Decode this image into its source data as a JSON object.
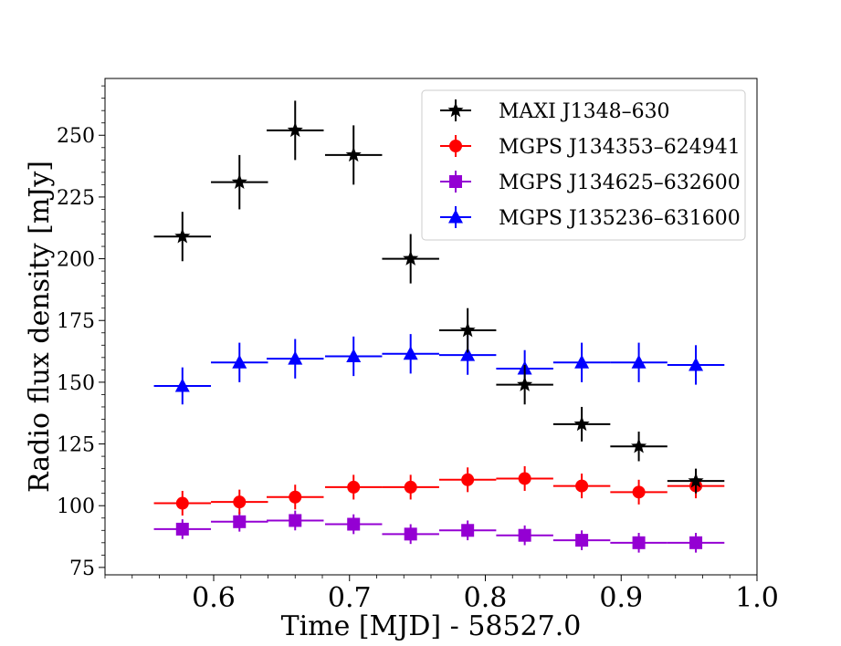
{
  "chart_data": {
    "type": "scatter",
    "title": "",
    "xlabel": "Time [MJD] - 58527.0",
    "ylabel": "Radio flux density [mJy]",
    "xlim": [
      0.52,
      1.0
    ],
    "ylim": [
      72,
      273
    ],
    "xticks": [
      0.6,
      0.7,
      0.8,
      0.9,
      1.0
    ],
    "xtick_labels": [
      "0.6",
      "0.7",
      "0.8",
      "0.9",
      "1.0"
    ],
    "yticks": [
      75,
      100,
      125,
      150,
      175,
      200,
      225,
      250
    ],
    "ytick_labels": [
      "75",
      "100",
      "125",
      "150",
      "175",
      "200",
      "225",
      "250"
    ],
    "legend_position": "top-right",
    "x": [
      0.577,
      0.619,
      0.66,
      0.703,
      0.745,
      0.787,
      0.829,
      0.871,
      0.913,
      0.955
    ],
    "x_err": 0.021,
    "series": [
      {
        "name": "MAXI J1348–630",
        "color": "#000000",
        "marker": "star",
        "values": [
          209,
          231,
          252,
          242,
          200,
          171,
          149,
          133,
          124,
          110
        ],
        "y_err": [
          10,
          11,
          12,
          12,
          10,
          9,
          8,
          7,
          6,
          5
        ]
      },
      {
        "name": "MGPS J134353–624941",
        "color": "#ff0000",
        "marker": "circle",
        "values": [
          101,
          101.5,
          103.5,
          107.5,
          107.5,
          110.5,
          111,
          108,
          105.5,
          108
        ],
        "y_err": [
          5,
          5,
          5,
          5,
          5,
          5,
          5,
          5,
          5,
          5
        ]
      },
      {
        "name": "MGPS J134625–632600",
        "color": "#9400d3",
        "marker": "square",
        "values": [
          90.5,
          93.5,
          94,
          92.5,
          88.5,
          90,
          88,
          86,
          85,
          85
        ],
        "y_err": [
          4,
          4,
          4,
          4,
          4,
          4,
          4,
          4,
          4,
          4
        ]
      },
      {
        "name": "MGPS J135236–631600",
        "color": "#0000ff",
        "marker": "triangle",
        "values": [
          148.5,
          158,
          159.5,
          160.5,
          161.5,
          161,
          155.5,
          158,
          158,
          157
        ],
        "y_err": [
          7.5,
          8,
          8,
          8,
          8,
          8,
          7.5,
          8,
          8,
          8
        ]
      }
    ]
  }
}
